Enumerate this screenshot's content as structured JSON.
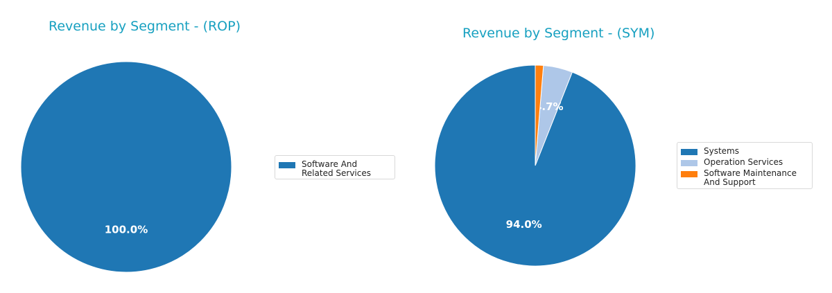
{
  "chart_data": [
    {
      "type": "pie",
      "title": "Revenue by Segment - (ROP)",
      "categories": [
        "Software And Related Services"
      ],
      "values": [
        100.0
      ],
      "labels": [
        "100.0%"
      ],
      "colors": [
        "#1f77b4"
      ],
      "legend_position": "right"
    },
    {
      "type": "pie",
      "title": "Revenue by Segment - (SYM)",
      "categories": [
        "Systems",
        "Operation Services",
        "Software Maintenance And Support"
      ],
      "values": [
        94.0,
        4.7,
        1.3
      ],
      "labels": [
        "94.0%",
        "4.7%",
        ""
      ],
      "colors": [
        "#1f77b4",
        "#aec7e8",
        "#ff7f0e"
      ],
      "legend_position": "right"
    }
  ]
}
